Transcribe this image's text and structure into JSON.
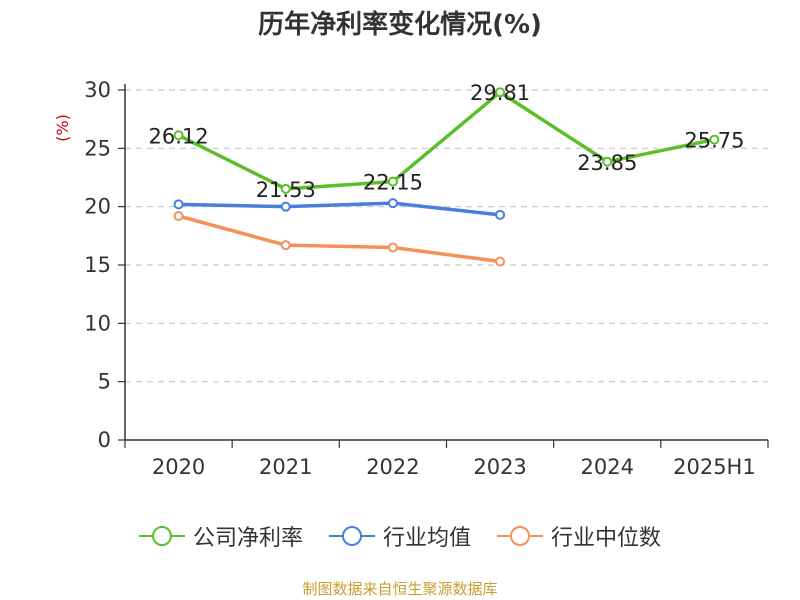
{
  "title": "历年净利率变化情况(%)",
  "source": "制图数据来自恒生聚源数据库",
  "colors": {
    "company": "#5cbf2a",
    "industry_avg": "#4a7edb",
    "industry_median": "#f4915a",
    "unit_label": "#cc0000"
  },
  "chart_data": {
    "type": "line",
    "categories": [
      "2020",
      "2021",
      "2022",
      "2023",
      "2024",
      "2025H1"
    ],
    "ylabel": "(%)",
    "ylim": [
      0,
      30
    ],
    "yticks": [
      0,
      5,
      10,
      15,
      20,
      25,
      30
    ],
    "grid": true,
    "legend_position": "bottom",
    "series": [
      {
        "name": "公司净利率",
        "values": [
          26.12,
          21.53,
          22.15,
          29.81,
          23.85,
          25.75
        ],
        "labels": [
          "26.12",
          "21.53",
          "22.15",
          "29.81",
          "23.85",
          "25.75"
        ],
        "show_labels": true
      },
      {
        "name": "行业均值",
        "values": [
          20.2,
          20.0,
          20.3,
          19.3,
          null,
          null
        ],
        "show_labels": false
      },
      {
        "name": "行业中位数",
        "values": [
          19.2,
          16.7,
          16.5,
          15.3,
          null,
          null
        ],
        "show_labels": false
      }
    ]
  }
}
